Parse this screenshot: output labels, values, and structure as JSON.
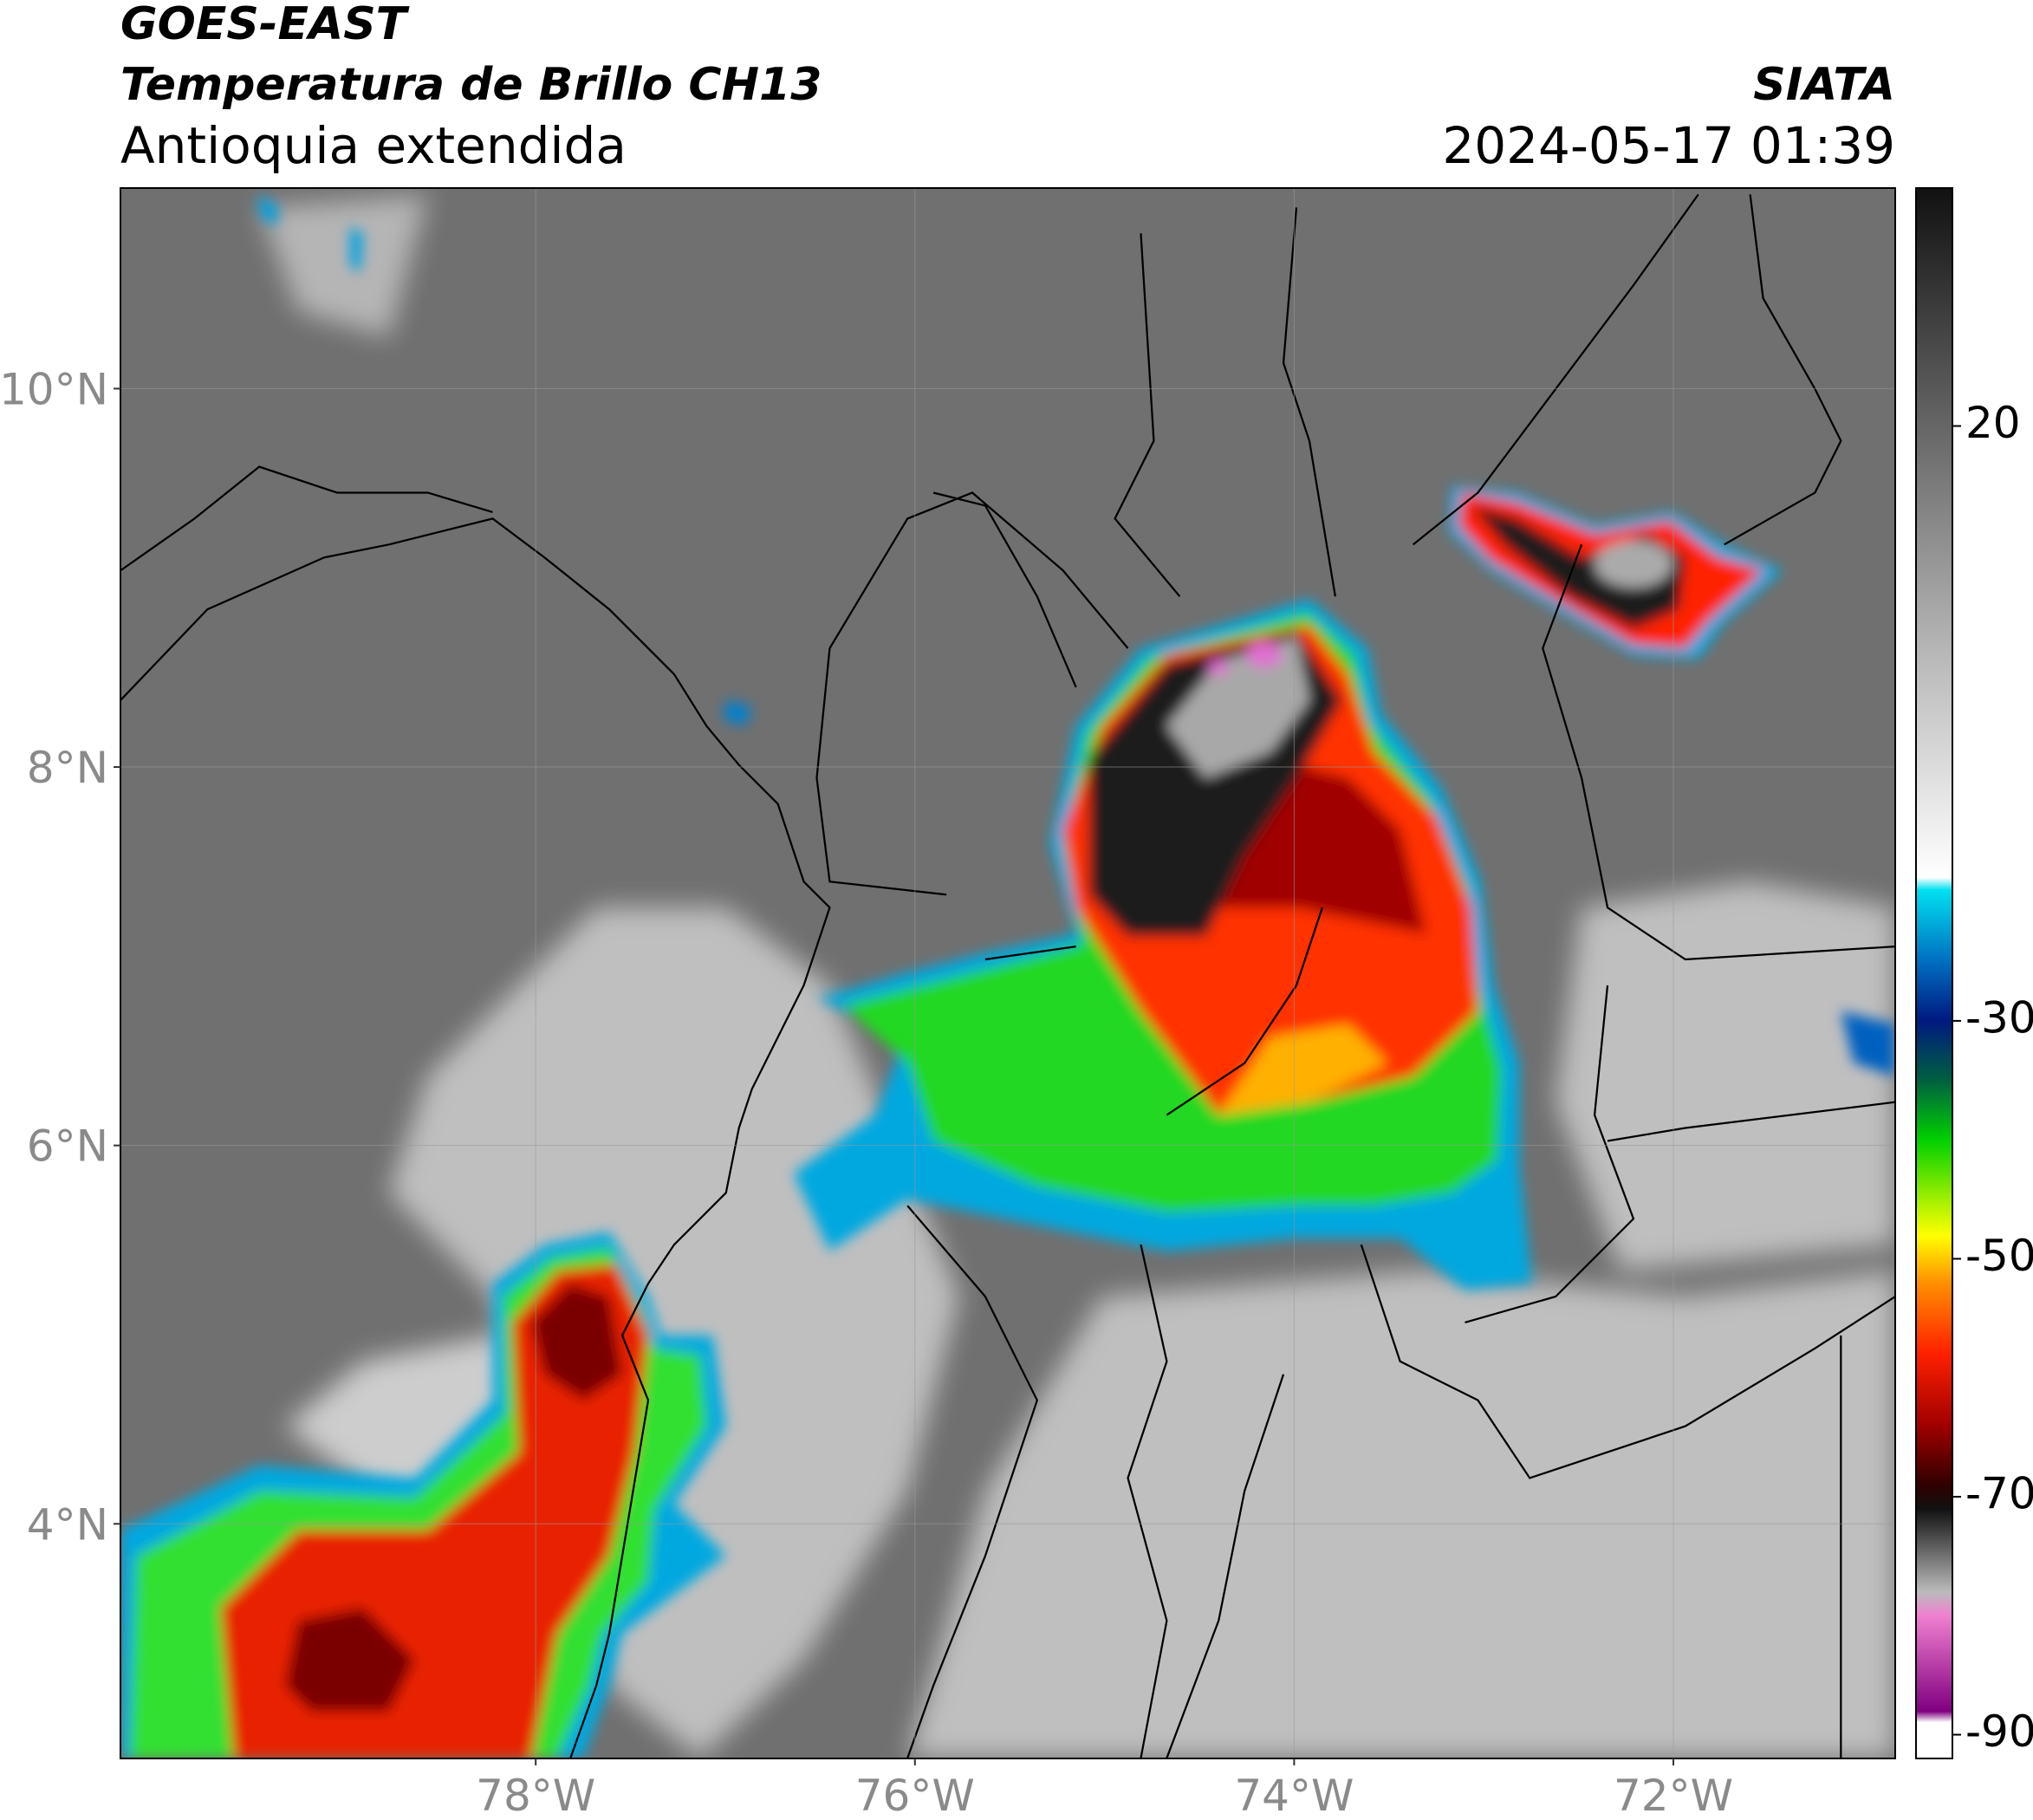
{
  "header": {
    "title": "GOES-EAST",
    "subtitle": "Temperatura de Brillo CH13",
    "region": "Antioquia extendida",
    "source": "SIATA",
    "datetime": "2024-05-17 01:39"
  },
  "map": {
    "lonlim": [
      -80.19,
      -70.83
    ],
    "latlim": [
      2.76,
      11.06
    ],
    "xticks": [
      {
        "value": -78,
        "label": "78°W"
      },
      {
        "value": -76,
        "label": "76°W"
      },
      {
        "value": -74,
        "label": "74°W"
      },
      {
        "value": -72,
        "label": "72°W"
      }
    ],
    "yticks": [
      {
        "value": 10,
        "label": "10°N"
      },
      {
        "value": 8,
        "label": "8°N"
      },
      {
        "value": 6,
        "label": "6°N"
      },
      {
        "value": 4,
        "label": "4°N"
      }
    ]
  },
  "colorbar": {
    "lim": [
      -92,
      40
    ],
    "ticks": [
      20,
      -30,
      -50,
      -70,
      -90
    ]
  }
}
